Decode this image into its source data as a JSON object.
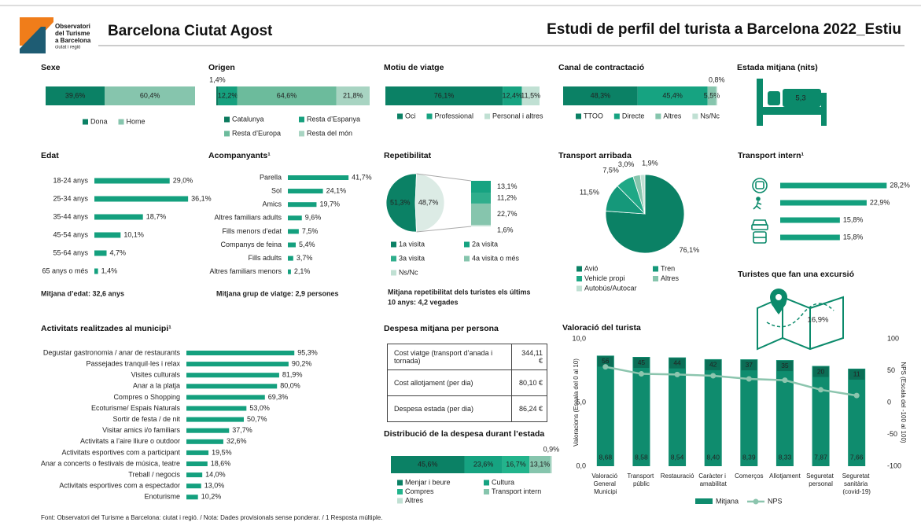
{
  "header": {
    "logo_lines": [
      "Observatori",
      "del Turisme",
      "a Barcelona"
    ],
    "logo_sub": "ciutat i regió",
    "title": "Barcelona Ciutat Agost",
    "subtitle": "Estudi de perfil del turista a Barcelona 2022_Estiu"
  },
  "table": {
    "title": "Despesa mitjana per persona",
    "rows": [
      [
        "Cost viatge (transport d’anada i tornada)",
        "344,11 €"
      ],
      [
        "Cost allotjament (per dia)",
        "80,10 €"
      ],
      [
        "Despesa estada (per dia)",
        "86,24 €"
      ]
    ]
  },
  "footer": "Font: Observatori del Turisme a Barcelona: ciutat i regió. / Nota: Dades provisionals sense ponderar. / 1 Resposta múltiple.",
  "chart_data": [
    {
      "type": "stacked_bar",
      "title": "Sexe",
      "categories": [
        "Dona",
        "Home"
      ],
      "values": [
        39.6,
        60.4
      ],
      "value_labels": [
        "39,6%",
        "60,4%"
      ],
      "colors": [
        "#0b8165",
        "#86c5ad"
      ]
    },
    {
      "type": "stacked_bar",
      "title": "Origen",
      "categories": [
        "Catalunya",
        "Resta d’Espanya",
        "Resta d’Europa",
        "Resta del món"
      ],
      "values": [
        1.4,
        12.2,
        64.6,
        21.8
      ],
      "value_labels": [
        "1,4%",
        "12,2%",
        "64,6%",
        "21,8%"
      ],
      "colors": [
        "#0b7a5e",
        "#16a07e",
        "#6cbb9c",
        "#a8d4c2"
      ]
    },
    {
      "type": "stacked_bar",
      "title": "Motiu de viatge",
      "categories": [
        "Oci",
        "Professional",
        "Personal i altres"
      ],
      "values": [
        76.1,
        12.4,
        11.5
      ],
      "value_labels": [
        "76,1%",
        "12,4%",
        "11,5%"
      ],
      "colors": [
        "#0b8165",
        "#17a381",
        "#c0e0d3"
      ]
    },
    {
      "type": "stacked_bar",
      "title": "Canal de contractació",
      "categories": [
        "TTOO",
        "Directe",
        "Altres",
        "Ns/Nc"
      ],
      "values": [
        48.3,
        45.4,
        5.5,
        0.8
      ],
      "value_labels": [
        "48,3%",
        "45,4%",
        "5,5%",
        "0,8%"
      ],
      "colors": [
        "#0b8165",
        "#16a381",
        "#86c5ad",
        "#c0e0d3"
      ]
    },
    {
      "type": "kpi",
      "title": "Estada mitjana (nits)",
      "value": 5.3,
      "value_label": "5,3"
    },
    {
      "type": "hbar",
      "title": "Edat",
      "categories": [
        "18-24 anys",
        "25-34 anys",
        "35-44 anys",
        "45-54 anys",
        "55-64 anys",
        "65 anys o més"
      ],
      "values": [
        29.0,
        36.1,
        18.7,
        10.1,
        4.7,
        1.4
      ],
      "value_labels": [
        "29,0%",
        "36,1%",
        "18,7%",
        "10,1%",
        "4,7%",
        "1,4%"
      ],
      "color": "#14a07e",
      "note": "Mitjana d’edat: 32,6 anys"
    },
    {
      "type": "hbar",
      "title": "Acompanyants¹",
      "categories": [
        "Parella",
        "Sol",
        "Amics",
        "Altres familiars adults",
        "Fills menors d’edat",
        "Companys de feina",
        "Fills adults",
        "Altres familiars menors"
      ],
      "values": [
        41.7,
        24.1,
        19.7,
        9.6,
        7.5,
        5.4,
        3.7,
        2.1
      ],
      "value_labels": [
        "41,7%",
        "24,1%",
        "19,7%",
        "9,6%",
        "7,5%",
        "5,4%",
        "3,7%",
        "2,1%"
      ],
      "color": "#14a07e",
      "note": "Mitjana grup de viatge: 2,9 persones"
    },
    {
      "type": "pie_column",
      "title": "Repetibilitat",
      "categories": [
        "1a visita",
        "2a visita",
        "3a visita",
        "4a visita o més",
        "Ns/Nc"
      ],
      "values": [
        51.3,
        13.1,
        11.2,
        22.7,
        1.6
      ],
      "value_labels": [
        "51,3%",
        "13,1%",
        "11,2%",
        "22,7%",
        "1,6%"
      ],
      "colors": [
        "#0b8165",
        "#16a381",
        "#2fae8c",
        "#86c5ad",
        "#c0e0d3"
      ],
      "rest_value": 48.7,
      "rest_label": "48,7%",
      "rest_color": "#dcebe5",
      "note": [
        "Mitjana repetibilitat dels turistes els últims",
        "10 anys: 4,2 vegades"
      ]
    },
    {
      "type": "pie",
      "title": "Transport arribada",
      "categories": [
        "Avió",
        "Tren",
        "Vehicle propi",
        "Altres",
        "Autobús/Autocar"
      ],
      "values": [
        76.1,
        11.5,
        7.5,
        3.0,
        1.9
      ],
      "value_labels": [
        "76,1%",
        "11,5%",
        "7,5%",
        "3,0%",
        "1,9%"
      ],
      "colors": [
        "#0b8165",
        "#15987a",
        "#1fa886",
        "#86c5ad",
        "#c0e0d3"
      ]
    },
    {
      "type": "hbar",
      "title": "Transport intern¹",
      "values": [
        28.2,
        22.9,
        15.8,
        15.8
      ],
      "value_labels": [
        "28,2%",
        "22,9%",
        "15,8%",
        "15,8%"
      ],
      "color": "#14a07e"
    },
    {
      "type": "kpi",
      "title": "Turistes que fan una excursió",
      "value": 16.9,
      "value_label": "16,9%"
    },
    {
      "type": "hbar",
      "title": "Activitats realitzades al municipi¹",
      "categories": [
        "Degustar gastronomia / anar de restaurants",
        "Passejades tranquil·les i relax",
        "Visites culturals",
        "Anar a la platja",
        "Compres o Shopping",
        "Ecoturisme/ Espais Naturals",
        "Sortir de festa / de nit",
        "Visitar amics i/o familiars",
        "Activitats a l’aire lliure o outdoor",
        "Activitats esportives com a participant",
        "Anar a concerts o festivals de música, teatre",
        "Treball / negocis",
        "Activitats esportives com a espectador",
        "Enoturisme"
      ],
      "values": [
        95.3,
        90.2,
        81.9,
        80.0,
        69.3,
        53.0,
        50.7,
        37.7,
        32.6,
        19.5,
        18.6,
        14.0,
        13.0,
        10.2
      ],
      "value_labels": [
        "95,3%",
        "90,2%",
        "81,9%",
        "80,0%",
        "69,3%",
        "53,0%",
        "50,7%",
        "37,7%",
        "32,6%",
        "19,5%",
        "18,6%",
        "14,0%",
        "13,0%",
        "10,2%"
      ],
      "color": "#14a07e"
    },
    {
      "type": "stacked_bar",
      "title": "Distribució de la despesa durant l’estada",
      "categories": [
        "Menjar i beure",
        "Cultura",
        "Compres",
        "Transport intern",
        "Altres"
      ],
      "values": [
        45.6,
        23.6,
        16.7,
        13.1,
        0.9
      ],
      "value_labels": [
        "45,6%",
        "23,6%",
        "16,7%",
        "13,1%",
        "0,9%"
      ],
      "colors": [
        "#0b8165",
        "#16a381",
        "#22b48c",
        "#86c5ad",
        "#c0e0d3"
      ]
    },
    {
      "type": "bar_line",
      "title": "Valoració del turista",
      "categories": [
        "Valoració General Municipi",
        "Transport públic",
        "Restauració",
        "Caràcter i amabilitat",
        "Comerços",
        "Allotjament",
        "Seguretat personal",
        "Seguretat sanitària (covid-19)"
      ],
      "series": [
        {
          "name": "Mitjana",
          "color": "#0f8c6e",
          "values": [
            8.68,
            8.58,
            8.54,
            8.4,
            8.39,
            8.33,
            7.87,
            7.66
          ],
          "value_labels": [
            "8,68",
            "8,58",
            "8,54",
            "8,40",
            "8,39",
            "8,33",
            "7,87",
            "7,66"
          ]
        },
        {
          "name": "NPS",
          "color": "#8cc5ae",
          "axis": "y2",
          "values": [
            56,
            45,
            44,
            42,
            37,
            35,
            20,
            11
          ]
        }
      ],
      "ylim": [
        0,
        10
      ],
      "yticks": [
        {
          "value": 0,
          "label": "0,0"
        },
        {
          "value": 5,
          "label": "5,0"
        },
        {
          "value": 10,
          "label": "10,0"
        }
      ],
      "y2lim": [
        -100,
        100
      ],
      "y2ticks": [
        -100,
        -50,
        0,
        50,
        100
      ],
      "ylabel": "Valoracions (Escala del 0 al 10)",
      "y2label": "NPS (Escala del -100 al 100)"
    }
  ]
}
